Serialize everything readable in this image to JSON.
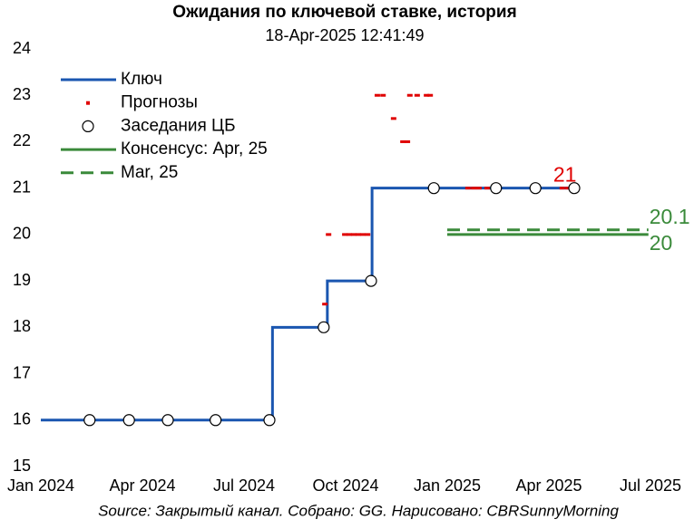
{
  "chart_data": {
    "type": "line",
    "title": "Ожидания по ключевой ставке, история",
    "subtitle": "18-Apr-2025 12:41:49",
    "source": "Source: Закрытый канал. Собрано: GG. Нарисовано: CBRSunnyMorning",
    "xlim": [
      2024.0,
      2025.5
    ],
    "xticks": [
      {
        "value": 2024.0,
        "label": "Jan 2024"
      },
      {
        "value": 2024.25,
        "label": "Apr 2024"
      },
      {
        "value": 2024.5,
        "label": "Jul 2024"
      },
      {
        "value": 2024.75,
        "label": "Oct 2024"
      },
      {
        "value": 2025.0,
        "label": "Jan 2025"
      },
      {
        "value": 2025.25,
        "label": "Apr 2025"
      },
      {
        "value": 2025.5,
        "label": "Jul 2025"
      }
    ],
    "ylim": [
      15,
      24
    ],
    "yticks": [
      15,
      16,
      17,
      18,
      19,
      20,
      21,
      22,
      23,
      24
    ],
    "grid": false,
    "legend": "upper left",
    "series": [
      {
        "name": "Ключ",
        "color": "#1a56b0",
        "style": "step",
        "x": [
          2024.0,
          2024.57,
          2024.705,
          2024.815,
          2025.31
        ],
        "values": [
          16,
          18,
          19,
          21,
          21
        ]
      },
      {
        "name": "Прогнозы",
        "color": "#e00000",
        "style": "dash-marker",
        "x": [
          2024.699,
          2024.708,
          2024.748,
          2024.759,
          2024.77,
          2024.781,
          2024.792,
          2024.804,
          2024.828,
          2024.842,
          2024.868,
          2024.891,
          2024.902,
          2024.908,
          2024.926,
          2024.949,
          2024.958,
          2025.051,
          2025.065,
          2025.078,
          2025.098,
          2025.283,
          2025.297
        ],
        "values": [
          18.5,
          20,
          20,
          20,
          20,
          20,
          20,
          20,
          23,
          23,
          22.5,
          22,
          22,
          23,
          23,
          23,
          23,
          21,
          21,
          21,
          21,
          21,
          21
        ]
      },
      {
        "name": "Заседания ЦБ",
        "color": "#000000",
        "style": "circle",
        "x": [
          2024.12,
          2024.217,
          2024.3125,
          2024.43,
          2024.5625,
          2024.696,
          2024.8125,
          2024.967,
          2025.12,
          2025.217,
          2025.3125
        ],
        "values": [
          16,
          16,
          16,
          16,
          16,
          18,
          19,
          21,
          21,
          21,
          21
        ]
      },
      {
        "name": "Консенсус: Apr, 25",
        "color": "#3a8a3a",
        "style": "solid",
        "x": [
          2025.0,
          2025.495
        ],
        "values": [
          20,
          20
        ]
      },
      {
        "name": "Mar, 25",
        "color": "#3a8a3a",
        "style": "dashed",
        "x": [
          2025.0,
          2025.495
        ],
        "values": [
          20.1,
          20.1
        ]
      }
    ]
  }
}
